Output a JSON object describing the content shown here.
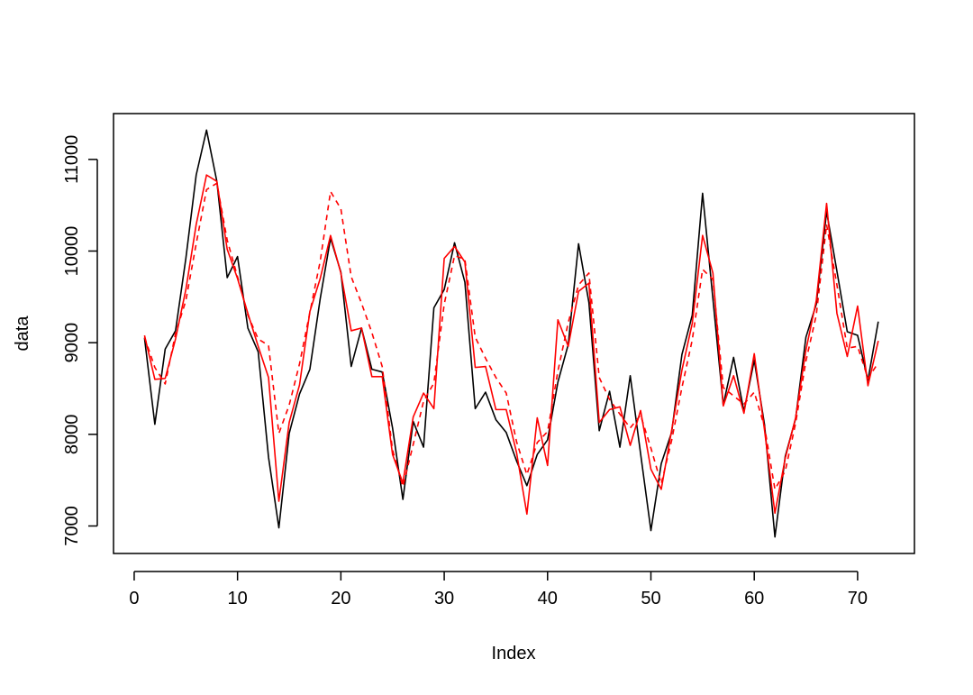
{
  "chart_data": {
    "type": "line",
    "title": "",
    "xlabel": "Index",
    "ylabel": "data",
    "xlim": [
      -2.0,
      75.5
    ],
    "ylim": [
      6700,
      11500
    ],
    "x_ticks": [
      0,
      10,
      20,
      30,
      40,
      50,
      60,
      70
    ],
    "y_ticks": [
      7000,
      8000,
      9000,
      10000,
      11000
    ],
    "x_tick_labels": [
      "0",
      "10",
      "20",
      "30",
      "40",
      "50",
      "60",
      "70"
    ],
    "y_tick_labels": [
      "7000",
      "8000",
      "9000",
      "10000",
      "11000"
    ],
    "grid": false,
    "legend": "none",
    "x": [
      1,
      2,
      3,
      4,
      5,
      6,
      7,
      8,
      9,
      10,
      11,
      12,
      13,
      14,
      15,
      16,
      17,
      18,
      19,
      20,
      21,
      22,
      23,
      24,
      25,
      26,
      27,
      28,
      29,
      30,
      31,
      32,
      33,
      34,
      35,
      36,
      37,
      38,
      39,
      40,
      41,
      42,
      43,
      44,
      45,
      46,
      47,
      48,
      49,
      50,
      51,
      52,
      53,
      54,
      55,
      56,
      57,
      58,
      59,
      60,
      61,
      62,
      63,
      64,
      65,
      66,
      67,
      68,
      69,
      70,
      71,
      72
    ],
    "series": [
      {
        "style": "solid",
        "color": "#000000",
        "values": [
          9050,
          8110,
          8930,
          9130,
          9920,
          10830,
          11320,
          10760,
          9710,
          9940,
          9160,
          8900,
          7750,
          6980,
          8010,
          8440,
          8710,
          9480,
          10140,
          9770,
          8740,
          9160,
          8710,
          8680,
          8070,
          7290,
          8140,
          7860,
          9380,
          9580,
          10090,
          9660,
          8280,
          8460,
          8160,
          8020,
          7710,
          7440,
          7780,
          7940,
          8570,
          8980,
          10080,
          9440,
          8040,
          8470,
          7860,
          8640,
          7790,
          6950,
          7680,
          8020,
          8870,
          9300,
          10630,
          9480,
          8320,
          8840,
          8250,
          8810,
          8100,
          6880,
          7760,
          8170,
          9060,
          9420,
          10430,
          9780,
          9120,
          9080,
          8590,
          9230
        ]
      },
      {
        "style": "solid",
        "color": "#ff0000",
        "values": [
          9080,
          8600,
          8610,
          9040,
          9580,
          10290,
          10830,
          10760,
          10020,
          9700,
          9320,
          8960,
          8620,
          7270,
          8130,
          8540,
          9340,
          9700,
          10170,
          9760,
          9130,
          9160,
          8630,
          8630,
          7780,
          7470,
          8190,
          8450,
          8280,
          9920,
          10050,
          9880,
          8730,
          8740,
          8270,
          8270,
          7800,
          7130,
          8180,
          7660,
          9250,
          8960,
          9560,
          9650,
          8130,
          8270,
          8300,
          7880,
          8260,
          7620,
          7400,
          8040,
          8700,
          9210,
          10170,
          9760,
          8310,
          8640,
          8230,
          8880,
          8040,
          7140,
          7740,
          8180,
          8920,
          9460,
          10520,
          9320,
          8850,
          9400,
          8530,
          9020
        ]
      },
      {
        "style": "dashed",
        "color": "#ff0000",
        "values": [
          9060,
          8730,
          8550,
          9100,
          9460,
          10080,
          10670,
          10740,
          10120,
          9720,
          9300,
          9040,
          8970,
          8010,
          8320,
          8770,
          9330,
          9890,
          10650,
          10460,
          9720,
          9430,
          9110,
          8740,
          7830,
          7430,
          7890,
          8360,
          8560,
          9420,
          9950,
          9910,
          9060,
          8830,
          8620,
          8450,
          7920,
          7560,
          7910,
          8030,
          8690,
          9220,
          9630,
          9760,
          8620,
          8380,
          8220,
          8070,
          8210,
          7850,
          7460,
          7930,
          8510,
          9030,
          9800,
          9690,
          8510,
          8420,
          8330,
          8460,
          8080,
          7400,
          7600,
          8120,
          8800,
          9300,
          10290,
          9630,
          8940,
          8960,
          8610,
          8780
        ]
      }
    ]
  }
}
